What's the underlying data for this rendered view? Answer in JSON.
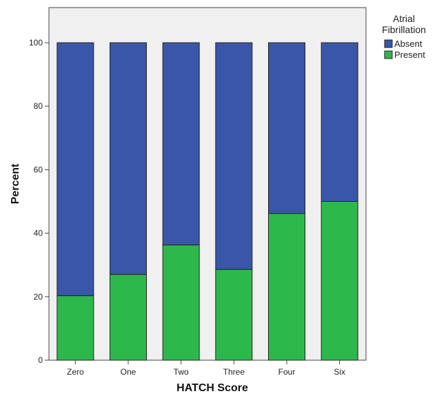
{
  "chart_data": {
    "type": "bar",
    "stacked": true,
    "categories": [
      "Zero",
      "One",
      "Two",
      "Three",
      "Four",
      "Six"
    ],
    "series": [
      {
        "name": "Present",
        "values": [
          20.3,
          27,
          36.3,
          28.6,
          46.2,
          50
        ],
        "color": "#2db84c"
      },
      {
        "name": "Absent",
        "values": [
          79.7,
          73,
          63.7,
          71.4,
          53.8,
          50
        ],
        "color": "#3a56a8"
      }
    ],
    "xlabel": "HATCH Score",
    "ylabel": "Percent",
    "ylim": [
      0,
      110
    ],
    "yticks": [
      0,
      20,
      40,
      60,
      80,
      100
    ],
    "grid": false,
    "background": "#f0f0f0",
    "legend": {
      "title_lines": [
        "Atrial",
        "Fibrillation"
      ],
      "placement": "top-right",
      "order": [
        "Absent",
        "Present"
      ]
    }
  }
}
